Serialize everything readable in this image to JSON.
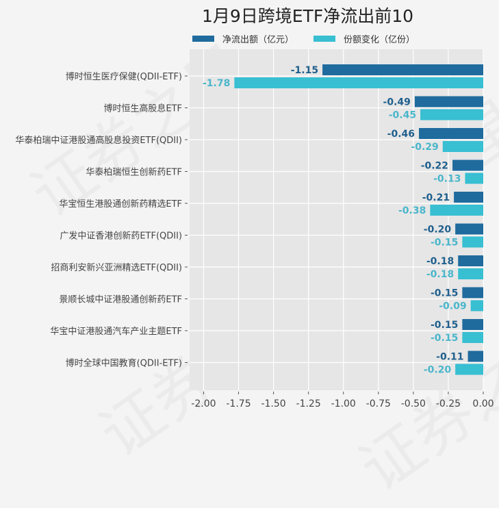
{
  "chart_data": {
    "type": "bar",
    "orientation": "horizontal",
    "title": "1月9日跨境ETF净流出前10",
    "categories": [
      "博时恒生医疗保健(QDII-ETF)",
      "博时恒生高股息ETF",
      "华泰柏瑞中证港股通高股息投资ETF(QDII)",
      "华泰柏瑞恒生创新药ETF",
      "华宝恒生港股通创新药精选ETF",
      "广发中证香港创新药ETF(QDII)",
      "招商利安新兴亚洲精选ETF(QDII)",
      "景顺长城中证港股通创新药ETF",
      "华宝中证港股通汽车产业主题ETF",
      "博时全球中国教育(QDII-ETF)"
    ],
    "series": [
      {
        "name": "净流出额（亿元）",
        "color": "#1f6b9e",
        "label_color": "#1f5f8c",
        "values": [
          -1.15,
          -0.49,
          -0.46,
          -0.22,
          -0.21,
          -0.2,
          -0.18,
          -0.15,
          -0.15,
          -0.11
        ]
      },
      {
        "name": "份额变化（亿份）",
        "color": "#38bfd2",
        "label_color": "#4ab6cb",
        "values": [
          -1.78,
          -0.45,
          -0.29,
          -0.13,
          -0.38,
          -0.15,
          -0.18,
          -0.09,
          -0.15,
          -0.2
        ]
      }
    ],
    "xlim": [
      -2.1,
      0.0
    ],
    "xticks": [
      -2.0,
      -1.75,
      -1.5,
      -1.25,
      -1.0,
      -0.75,
      -0.5,
      -0.25,
      0.0
    ],
    "xtick_labels": [
      "-2.00",
      "-1.75",
      "-1.50",
      "-1.25",
      "-1.00",
      "-0.75",
      "-0.50",
      "-0.25",
      "0.00"
    ],
    "xlabel": "",
    "ylabel": "",
    "grid": true,
    "legend_position": "top-center"
  },
  "watermark": "证券之星"
}
